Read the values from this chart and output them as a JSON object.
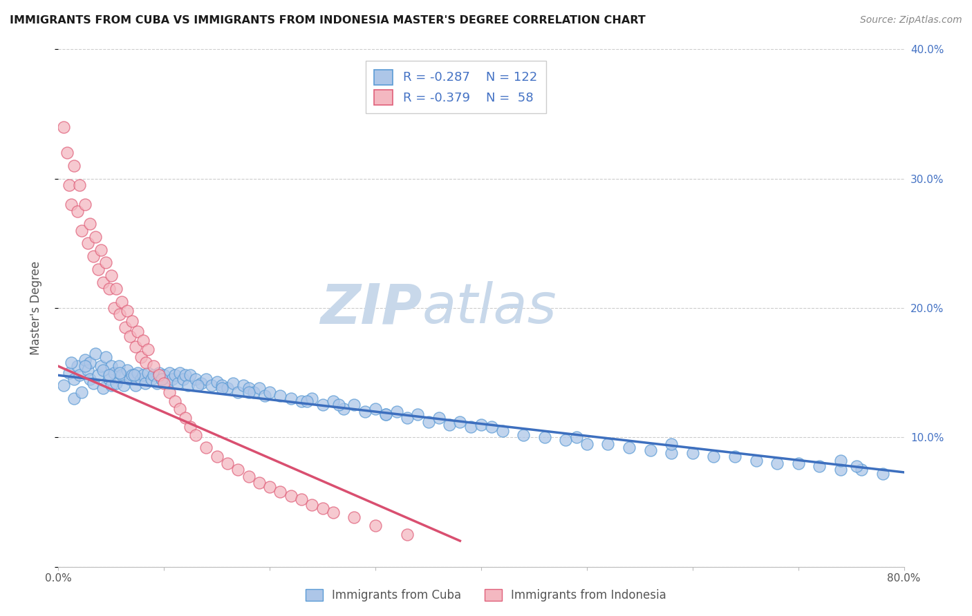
{
  "title": "IMMIGRANTS FROM CUBA VS IMMIGRANTS FROM INDONESIA MASTER'S DEGREE CORRELATION CHART",
  "source": "Source: ZipAtlas.com",
  "ylabel": "Master's Degree",
  "xlim": [
    0.0,
    0.8
  ],
  "ylim": [
    0.0,
    0.4
  ],
  "xticks": [
    0.0,
    0.1,
    0.2,
    0.3,
    0.4,
    0.5,
    0.6,
    0.7,
    0.8
  ],
  "xticklabels": [
    "0.0%",
    "",
    "",
    "",
    "",
    "",
    "",
    "",
    "80.0%"
  ],
  "yticks": [
    0.0,
    0.1,
    0.2,
    0.3,
    0.4
  ],
  "right_yticklabels": [
    "",
    "10.0%",
    "20.0%",
    "30.0%",
    "40.0%"
  ],
  "cuba_color": "#adc6e8",
  "cuba_edge": "#5b9bd5",
  "indonesia_color": "#f4b8c1",
  "indonesia_edge": "#e0607a",
  "cuba_R": -0.287,
  "cuba_N": 122,
  "indonesia_R": -0.379,
  "indonesia_N": 58,
  "legend_label_cuba": "Immigrants from Cuba",
  "legend_label_indonesia": "Immigrants from Indonesia",
  "watermark_zip": "ZIP",
  "watermark_atlas": "atlas",
  "background_color": "#ffffff",
  "grid_color": "#cccccc",
  "cuba_line_color": "#3d6fbe",
  "indonesia_line_color": "#d94f70",
  "title_color": "#1a1a1a",
  "source_color": "#888888",
  "tick_color": "#4472c4",
  "legend_text_color": "#4472c4",
  "cuba_line_start_y": 0.148,
  "cuba_line_end_y": 0.073,
  "indo_line_start_y": 0.155,
  "indo_line_end_x": 0.38,
  "indo_line_end_y": 0.02,
  "cuba_scatter_x": [
    0.005,
    0.01,
    0.015,
    0.015,
    0.018,
    0.02,
    0.022,
    0.025,
    0.028,
    0.03,
    0.03,
    0.033,
    0.035,
    0.038,
    0.04,
    0.042,
    0.045,
    0.048,
    0.05,
    0.05,
    0.053,
    0.055,
    0.057,
    0.06,
    0.062,
    0.065,
    0.068,
    0.07,
    0.073,
    0.075,
    0.078,
    0.08,
    0.082,
    0.085,
    0.088,
    0.09,
    0.093,
    0.095,
    0.098,
    0.1,
    0.103,
    0.105,
    0.108,
    0.11,
    0.113,
    0.115,
    0.118,
    0.12,
    0.123,
    0.125,
    0.13,
    0.135,
    0.14,
    0.145,
    0.15,
    0.155,
    0.16,
    0.165,
    0.17,
    0.175,
    0.18,
    0.185,
    0.19,
    0.195,
    0.2,
    0.21,
    0.22,
    0.23,
    0.24,
    0.25,
    0.26,
    0.27,
    0.28,
    0.29,
    0.3,
    0.31,
    0.32,
    0.33,
    0.34,
    0.35,
    0.36,
    0.37,
    0.38,
    0.39,
    0.4,
    0.42,
    0.44,
    0.46,
    0.48,
    0.5,
    0.52,
    0.54,
    0.56,
    0.58,
    0.6,
    0.62,
    0.64,
    0.66,
    0.68,
    0.7,
    0.72,
    0.74,
    0.76,
    0.78,
    0.74,
    0.755,
    0.58,
    0.49,
    0.41,
    0.31,
    0.265,
    0.235,
    0.18,
    0.155,
    0.132,
    0.098,
    0.072,
    0.058,
    0.042,
    0.025,
    0.012,
    0.048
  ],
  "cuba_scatter_y": [
    0.14,
    0.15,
    0.145,
    0.13,
    0.155,
    0.148,
    0.135,
    0.16,
    0.152,
    0.145,
    0.158,
    0.142,
    0.165,
    0.148,
    0.155,
    0.138,
    0.162,
    0.145,
    0.155,
    0.14,
    0.15,
    0.142,
    0.155,
    0.148,
    0.14,
    0.152,
    0.145,
    0.148,
    0.14,
    0.15,
    0.145,
    0.148,
    0.142,
    0.15,
    0.145,
    0.148,
    0.142,
    0.15,
    0.145,
    0.148,
    0.142,
    0.15,
    0.145,
    0.148,
    0.142,
    0.15,
    0.145,
    0.148,
    0.14,
    0.148,
    0.145,
    0.142,
    0.145,
    0.14,
    0.143,
    0.14,
    0.138,
    0.142,
    0.135,
    0.14,
    0.138,
    0.135,
    0.138,
    0.132,
    0.135,
    0.132,
    0.13,
    0.128,
    0.13,
    0.125,
    0.128,
    0.122,
    0.125,
    0.12,
    0.122,
    0.118,
    0.12,
    0.115,
    0.118,
    0.112,
    0.115,
    0.11,
    0.112,
    0.108,
    0.11,
    0.105,
    0.102,
    0.1,
    0.098,
    0.095,
    0.095,
    0.092,
    0.09,
    0.088,
    0.088,
    0.085,
    0.085,
    0.082,
    0.08,
    0.08,
    0.078,
    0.075,
    0.075,
    0.072,
    0.082,
    0.078,
    0.095,
    0.1,
    0.108,
    0.118,
    0.125,
    0.128,
    0.135,
    0.138,
    0.14,
    0.145,
    0.148,
    0.15,
    0.152,
    0.155,
    0.158,
    0.148
  ],
  "indonesia_scatter_x": [
    0.005,
    0.008,
    0.01,
    0.012,
    0.015,
    0.018,
    0.02,
    0.022,
    0.025,
    0.028,
    0.03,
    0.033,
    0.035,
    0.038,
    0.04,
    0.042,
    0.045,
    0.048,
    0.05,
    0.053,
    0.055,
    0.058,
    0.06,
    0.063,
    0.065,
    0.068,
    0.07,
    0.073,
    0.075,
    0.078,
    0.08,
    0.083,
    0.085,
    0.09,
    0.095,
    0.1,
    0.105,
    0.11,
    0.115,
    0.12,
    0.125,
    0.13,
    0.14,
    0.15,
    0.16,
    0.17,
    0.18,
    0.19,
    0.2,
    0.21,
    0.22,
    0.23,
    0.24,
    0.25,
    0.26,
    0.28,
    0.3,
    0.33
  ],
  "indonesia_scatter_y": [
    0.34,
    0.32,
    0.295,
    0.28,
    0.31,
    0.275,
    0.295,
    0.26,
    0.28,
    0.25,
    0.265,
    0.24,
    0.255,
    0.23,
    0.245,
    0.22,
    0.235,
    0.215,
    0.225,
    0.2,
    0.215,
    0.195,
    0.205,
    0.185,
    0.198,
    0.178,
    0.19,
    0.17,
    0.182,
    0.162,
    0.175,
    0.158,
    0.168,
    0.155,
    0.148,
    0.142,
    0.135,
    0.128,
    0.122,
    0.115,
    0.108,
    0.102,
    0.092,
    0.085,
    0.08,
    0.075,
    0.07,
    0.065,
    0.062,
    0.058,
    0.055,
    0.052,
    0.048,
    0.045,
    0.042,
    0.038,
    0.032,
    0.025
  ]
}
